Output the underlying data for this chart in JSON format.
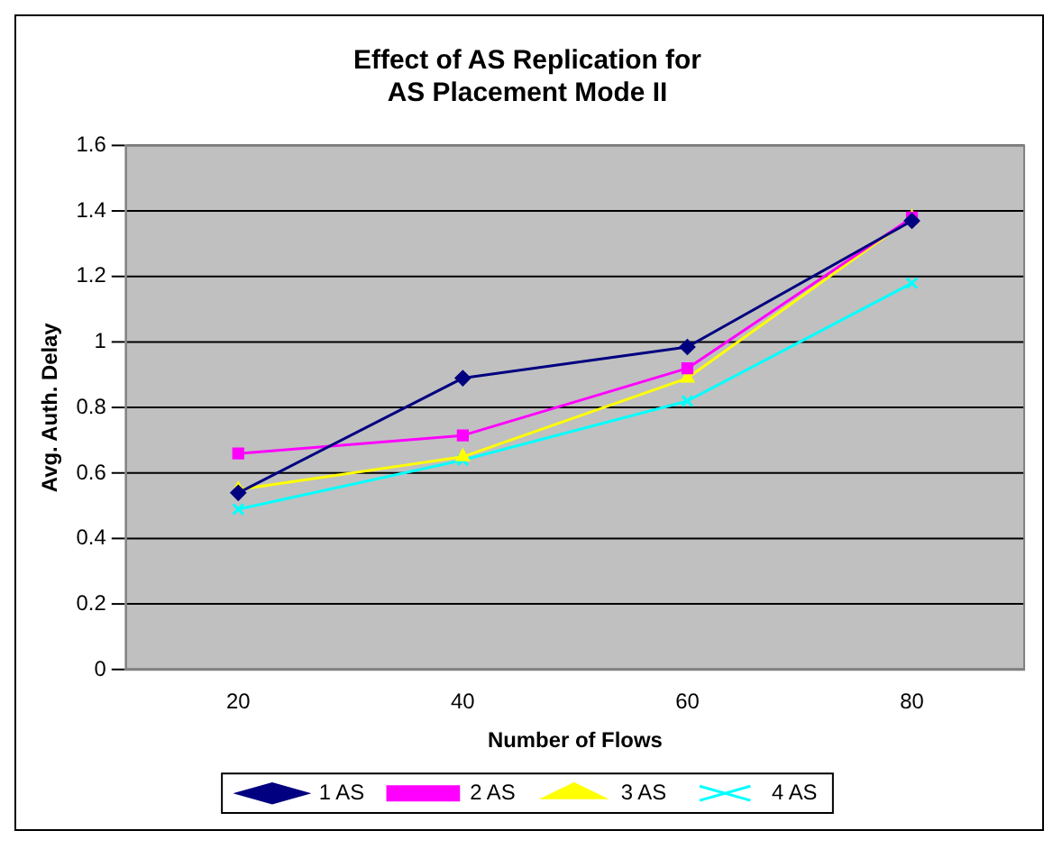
{
  "chart_data": {
    "type": "line",
    "title": "Effect of AS Replication for\nAS Placement Mode II",
    "xlabel": "Number of Flows",
    "ylabel": "Avg. Auth. Delay",
    "categories": [
      "20",
      "40",
      "60",
      "80"
    ],
    "series": [
      {
        "name": "1 AS",
        "color": "#000080",
        "marker": "diamond",
        "values": [
          0.54,
          0.89,
          0.985,
          1.37
        ]
      },
      {
        "name": "2 AS",
        "color": "#ff00ff",
        "marker": "square",
        "values": [
          0.66,
          0.715,
          0.92,
          1.38
        ]
      },
      {
        "name": "3 AS",
        "color": "#ffff00",
        "marker": "triangle",
        "values": [
          0.55,
          0.65,
          0.89,
          1.38
        ]
      },
      {
        "name": "4 AS",
        "color": "#00ffff",
        "marker": "cross",
        "values": [
          0.49,
          0.64,
          0.82,
          1.18
        ]
      }
    ],
    "ylim": [
      0,
      1.6
    ],
    "yticks": [
      0,
      0.2,
      0.4,
      0.6,
      0.8,
      1,
      1.2,
      1.4,
      1.6
    ],
    "grid": "y",
    "legend": "bottom"
  }
}
